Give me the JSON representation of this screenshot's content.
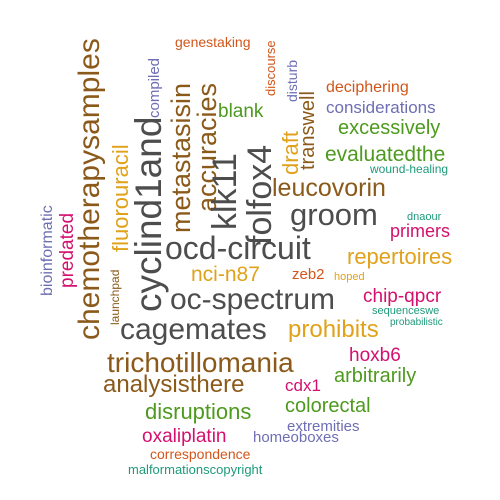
{
  "palette": {
    "brown": "#8b5a1a",
    "gray": "#4d4d4d",
    "green": "#4d9a1e",
    "orange": "#e0a21a",
    "magenta": "#d4106f",
    "purple": "#6e6eb4",
    "red": "#d2561a",
    "teal": "#1e9a7a"
  },
  "words": [
    {
      "text": "chemotherapysamples",
      "color": "#8b5a1a"
    },
    {
      "text": "cyclind1and",
      "color": "#4d4d4d"
    },
    {
      "text": "metastasisin",
      "color": "#8b5a1a"
    },
    {
      "text": "accuracies",
      "color": "#8b5a1a"
    },
    {
      "text": "klk11",
      "color": "#4d4d4d"
    },
    {
      "text": "folfox4",
      "color": "#4d4d4d"
    },
    {
      "text": "fluorouracil",
      "color": "#e0a21a"
    },
    {
      "text": "compiled",
      "color": "#6e6eb4"
    },
    {
      "text": "genestaking",
      "color": "#d2561a"
    },
    {
      "text": "discourse",
      "color": "#d2561a"
    },
    {
      "text": "disturb",
      "color": "#6e6eb4"
    },
    {
      "text": "transwell",
      "color": "#8b5a1a"
    },
    {
      "text": "draft",
      "color": "#e0a21a"
    },
    {
      "text": "blank",
      "color": "#4d9a1e"
    },
    {
      "text": "deciphering",
      "color": "#d2561a"
    },
    {
      "text": "considerations",
      "color": "#6e6eb4"
    },
    {
      "text": "excessively",
      "color": "#4d9a1e"
    },
    {
      "text": "evaluatedthe",
      "color": "#4d9a1e"
    },
    {
      "text": "wound-healing",
      "color": "#1e9a7a"
    },
    {
      "text": "leucovorin",
      "color": "#8b5a1a"
    },
    {
      "text": "groom",
      "color": "#4d4d4d"
    },
    {
      "text": "bioinformatic",
      "color": "#6e6eb4"
    },
    {
      "text": "predated",
      "color": "#d4106f"
    },
    {
      "text": "dnaour",
      "color": "#1e9a7a"
    },
    {
      "text": "primers",
      "color": "#d4106f"
    },
    {
      "text": "ocd-circuit",
      "color": "#4d4d4d"
    },
    {
      "text": "repertoires",
      "color": "#e0a21a"
    },
    {
      "text": "launchpad",
      "color": "#8b5a1a"
    },
    {
      "text": "nci-n87",
      "color": "#e0a21a"
    },
    {
      "text": "zeb2",
      "color": "#d2561a"
    },
    {
      "text": "hoped",
      "color": "#e0a21a"
    },
    {
      "text": "oc-spectrum",
      "color": "#4d4d4d"
    },
    {
      "text": "chip-qpcr",
      "color": "#d4106f"
    },
    {
      "text": "sequenceswe",
      "color": "#1e9a7a"
    },
    {
      "text": "probabilistic",
      "color": "#1e9a7a"
    },
    {
      "text": "cagemates",
      "color": "#4d4d4d"
    },
    {
      "text": "prohibits",
      "color": "#e0a21a"
    },
    {
      "text": "trichotillomania",
      "color": "#8b5a1a"
    },
    {
      "text": "hoxb6",
      "color": "#d4106f"
    },
    {
      "text": "analysisthere",
      "color": "#8b5a1a"
    },
    {
      "text": "cdx1",
      "color": "#d4106f"
    },
    {
      "text": "arbitrarily",
      "color": "#4d9a1e"
    },
    {
      "text": "disruptions",
      "color": "#4d9a1e"
    },
    {
      "text": "colorectal",
      "color": "#4d9a1e"
    },
    {
      "text": "extremities",
      "color": "#6e6eb4"
    },
    {
      "text": "oxaliplatin",
      "color": "#d4106f"
    },
    {
      "text": "homeoboxes",
      "color": "#6e6eb4"
    },
    {
      "text": "correspondence",
      "color": "#d2561a"
    },
    {
      "text": "malformationscopyright",
      "color": "#1e9a7a"
    }
  ]
}
